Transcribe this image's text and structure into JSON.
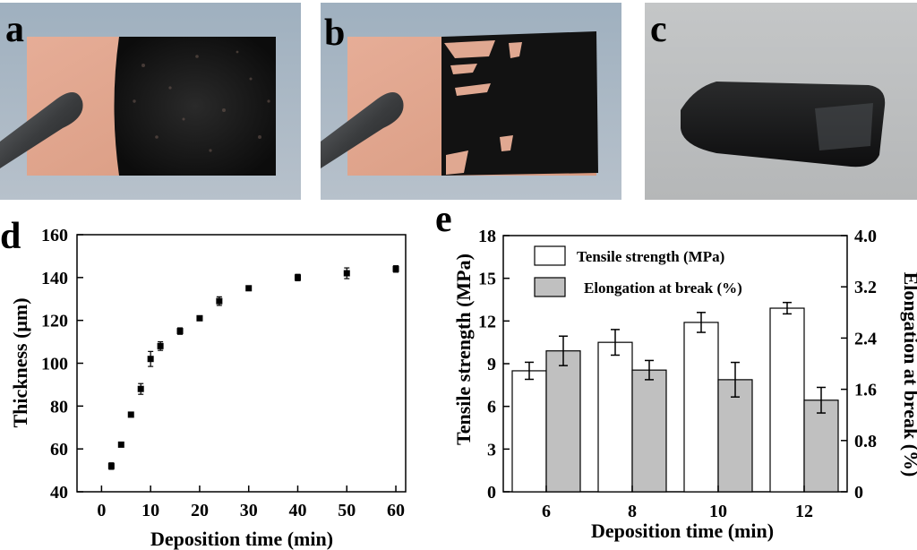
{
  "panels": {
    "a": "a",
    "b": "b",
    "c": "c",
    "d": "d",
    "e": "e"
  },
  "chart_data": [
    {
      "type": "scatter",
      "xlabel": "Deposition time (min)",
      "ylabel": "Thickness (μm)",
      "xlim": [
        -5,
        62
      ],
      "ylim": [
        40,
        160
      ],
      "xticks": [
        0,
        10,
        20,
        30,
        40,
        50,
        60
      ],
      "yticks": [
        40,
        60,
        80,
        100,
        120,
        140,
        160
      ],
      "points": [
        {
          "x": 2,
          "y": 52,
          "err": 1.5
        },
        {
          "x": 4,
          "y": 62,
          "err": 1
        },
        {
          "x": 6,
          "y": 76,
          "err": 1
        },
        {
          "x": 8,
          "y": 88,
          "err": 2.5
        },
        {
          "x": 10,
          "y": 102,
          "err": 3.5
        },
        {
          "x": 12,
          "y": 108,
          "err": 2
        },
        {
          "x": 16,
          "y": 115,
          "err": 1.5
        },
        {
          "x": 20,
          "y": 121,
          "err": 1
        },
        {
          "x": 24,
          "y": 129,
          "err": 2
        },
        {
          "x": 30,
          "y": 135,
          "err": 1
        },
        {
          "x": 40,
          "y": 140,
          "err": 1.5
        },
        {
          "x": 50,
          "y": 142,
          "err": 2.5
        },
        {
          "x": 60,
          "y": 144,
          "err": 1.5
        }
      ]
    },
    {
      "type": "bar",
      "categories": [
        "6",
        "8",
        "10",
        "12"
      ],
      "xlabel": "Deposition time (min)",
      "ylabel": "Tensile strength (MPa)",
      "ylabel_right": "Elongation at break (%)",
      "ylim": [
        0,
        18
      ],
      "ylim_right": [
        0,
        4.0
      ],
      "yticks": [
        "0",
        "3",
        "6",
        "9",
        "12",
        "15",
        "18"
      ],
      "yticks_right": [
        "0",
        "0.8",
        "1.6",
        "2.4",
        "3.2",
        "4.0"
      ],
      "legend_position": "top-left",
      "series": [
        {
          "name": "Tensile strength (MPa)",
          "axis": "left",
          "color": "#ffffff",
          "values": [
            8.5,
            10.5,
            11.9,
            12.9
          ],
          "errors": [
            0.6,
            0.9,
            0.7,
            0.4
          ]
        },
        {
          "name": "Elongation at break (%)",
          "axis": "right",
          "color": "#c0c0c0",
          "values": [
            2.2,
            1.9,
            1.75,
            1.43
          ],
          "errors": [
            0.23,
            0.15,
            0.27,
            0.2
          ]
        }
      ]
    }
  ]
}
